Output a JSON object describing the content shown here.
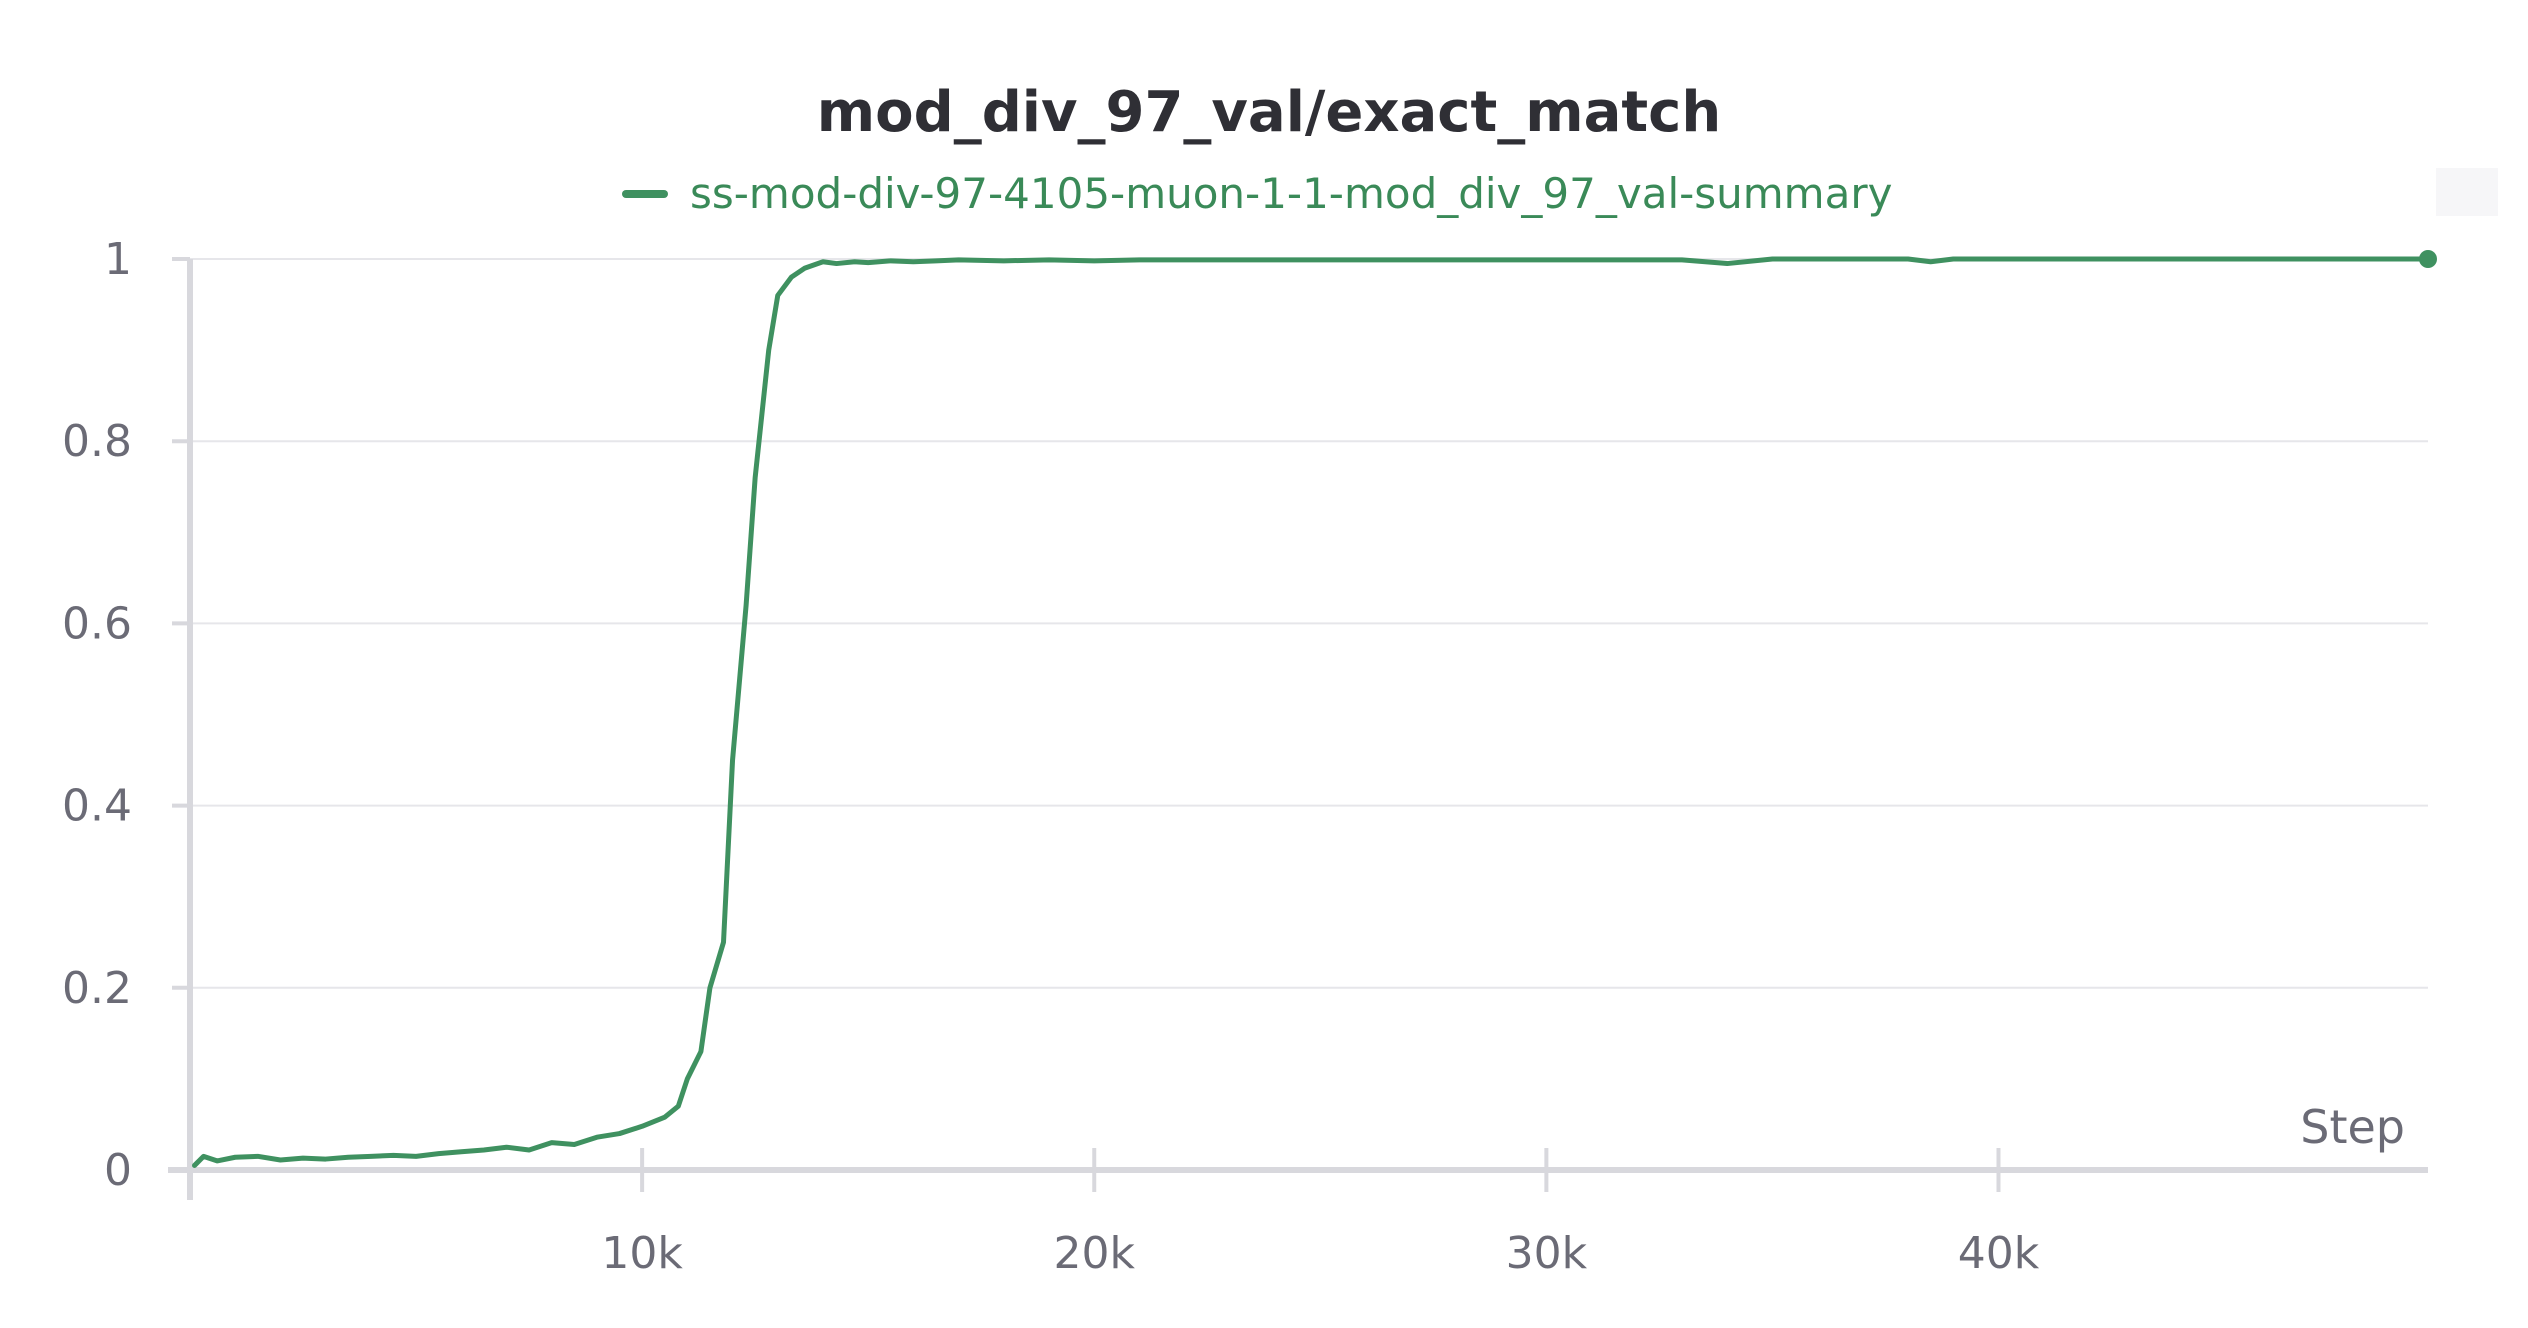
{
  "chart_data": {
    "type": "line",
    "title": "mod_div_97_val/exact_match",
    "xlabel": "Step",
    "ylabel": "",
    "xlim": [
      0,
      49500
    ],
    "ylim": [
      0,
      1
    ],
    "grid": true,
    "legend_position": "top-center",
    "x_ticks": [
      10000,
      20000,
      30000,
      40000
    ],
    "x_tick_labels": [
      "10k",
      "20k",
      "30k",
      "40k"
    ],
    "y_ticks": [
      0,
      0.2,
      0.4,
      0.6,
      0.8,
      1
    ],
    "y_tick_labels": [
      "0",
      "0.2",
      "0.4",
      "0.6",
      "0.8",
      "1"
    ],
    "colors": {
      "series": "#3f9160",
      "grid": "#e6e6ea",
      "axis": "#d8d8dd",
      "tick_label": "#6b6b76"
    },
    "series": [
      {
        "name": "ss-mod-div-97-4105-muon-1-1-mod_div_97_val-summary",
        "x": [
          100,
          300,
          600,
          1000,
          1500,
          2000,
          2500,
          3000,
          3500,
          4000,
          4500,
          5000,
          5500,
          6000,
          6500,
          7000,
          7500,
          8000,
          8500,
          9000,
          9500,
          10000,
          10500,
          10800,
          11000,
          11300,
          11500,
          11800,
          12000,
          12300,
          12500,
          12800,
          13000,
          13300,
          13600,
          14000,
          14300,
          14700,
          15000,
          15500,
          16000,
          16500,
          17000,
          18000,
          19000,
          20000,
          21000,
          22000,
          23000,
          24000,
          25000,
          26000,
          27000,
          28000,
          29000,
          30000,
          31000,
          32000,
          33000,
          34000,
          35000,
          36000,
          37000,
          38000,
          38500,
          39000,
          40000,
          41000,
          42000,
          43000,
          44000,
          45000,
          46000,
          47000,
          48000,
          49500
        ],
        "y": [
          0.005,
          0.015,
          0.01,
          0.014,
          0.015,
          0.011,
          0.013,
          0.012,
          0.014,
          0.015,
          0.016,
          0.015,
          0.018,
          0.02,
          0.022,
          0.025,
          0.022,
          0.03,
          0.028,
          0.036,
          0.04,
          0.048,
          0.058,
          0.07,
          0.1,
          0.13,
          0.2,
          0.25,
          0.45,
          0.62,
          0.76,
          0.9,
          0.96,
          0.98,
          0.99,
          0.997,
          0.995,
          0.997,
          0.996,
          0.998,
          0.997,
          0.998,
          0.999,
          0.998,
          0.999,
          0.998,
          0.999,
          0.999,
          0.999,
          0.999,
          0.999,
          0.999,
          0.999,
          0.999,
          0.999,
          0.999,
          0.999,
          0.999,
          0.999,
          0.995,
          1,
          1,
          1,
          1,
          0.997,
          1,
          1,
          1,
          1,
          1,
          1,
          1,
          1,
          1,
          1,
          1
        ]
      }
    ]
  }
}
